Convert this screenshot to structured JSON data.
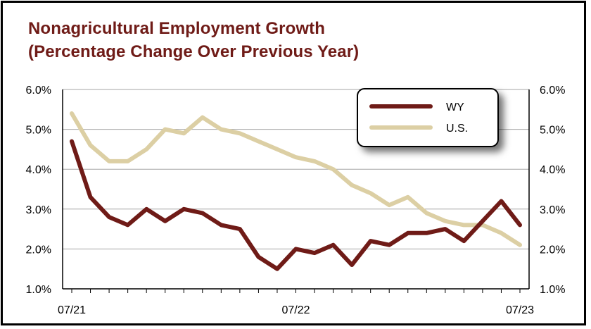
{
  "chart_data": {
    "type": "line",
    "title": "Nonagricultural Employment Growth",
    "subtitle": "(Percentage Change Over Previous Year)",
    "x_tick_labels": [
      "07/21",
      "07/22",
      "07/23"
    ],
    "y_tick_labels": [
      "1.0%",
      "2.0%",
      "3.0%",
      "4.0%",
      "5.0%",
      "6.0%"
    ],
    "ylim": [
      1.0,
      6.0
    ],
    "y_step": 1.0,
    "secondary_axis": true,
    "grid": "horizontal",
    "legend_position": "top-right",
    "x": [
      "07/21",
      "08/21",
      "09/21",
      "10/21",
      "11/21",
      "12/21",
      "01/22",
      "02/22",
      "03/22",
      "04/22",
      "05/22",
      "06/22",
      "07/22",
      "08/22",
      "09/22",
      "10/22",
      "11/22",
      "12/22",
      "01/23",
      "02/23",
      "03/23",
      "04/23",
      "05/23",
      "06/23",
      "07/23"
    ],
    "series": [
      {
        "name": "WY",
        "color": "#6f1b17",
        "values": [
          4.7,
          3.3,
          2.8,
          2.6,
          3.0,
          2.7,
          3.0,
          2.9,
          2.6,
          2.5,
          1.8,
          1.5,
          2.0,
          1.9,
          2.1,
          1.6,
          2.2,
          2.1,
          2.4,
          2.4,
          2.5,
          2.2,
          2.7,
          3.2,
          2.6
        ]
      },
      {
        "name": "U.S.",
        "color": "#dccfa4",
        "values": [
          5.4,
          4.6,
          4.2,
          4.2,
          4.5,
          5.0,
          4.9,
          5.3,
          5.0,
          4.9,
          4.7,
          4.5,
          4.3,
          4.2,
          4.0,
          3.6,
          3.4,
          3.1,
          3.3,
          2.9,
          2.7,
          2.6,
          2.6,
          2.4,
          2.1
        ]
      }
    ]
  }
}
